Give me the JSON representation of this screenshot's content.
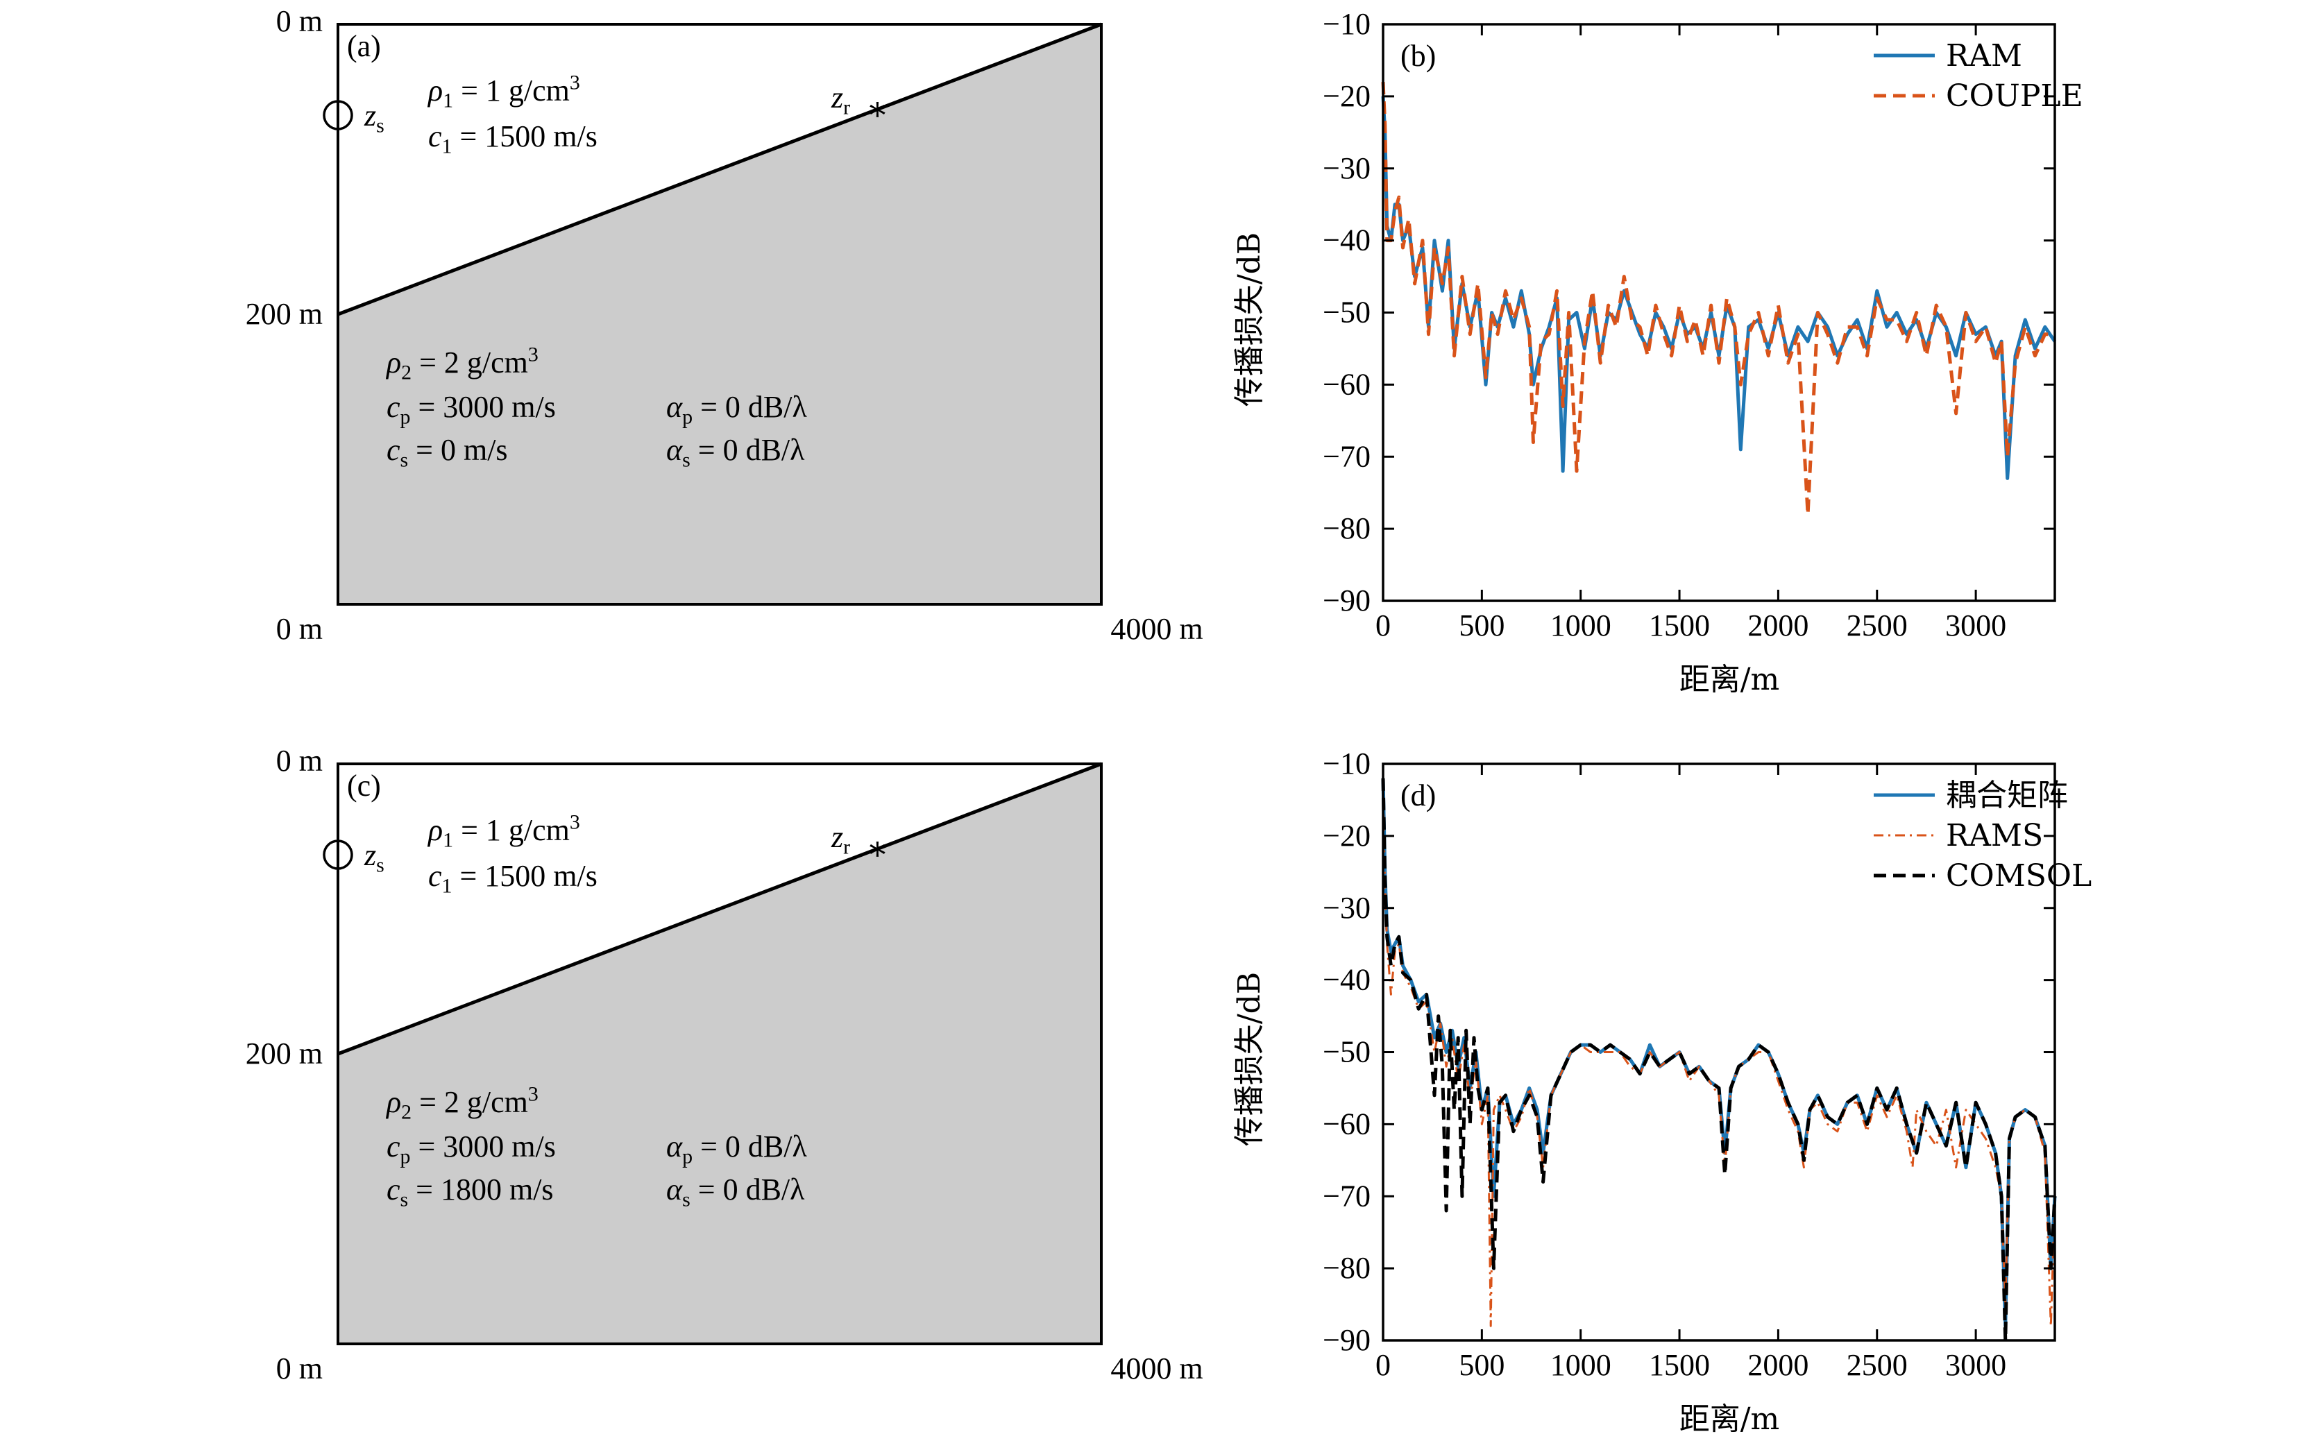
{
  "panels": {
    "a": {
      "label": "(a)",
      "y_top_label": "0 m",
      "y_mid_label": "200 m",
      "x_left_label": "0 m",
      "x_right_label": "4000 m",
      "source_label": "z",
      "source_sub": "s",
      "receiver_label": "z",
      "receiver_sub": "r",
      "water": {
        "rho": "ρ",
        "rho_sub": "1",
        "rho_val": " = 1 g/cm",
        "rho_sup": "3",
        "c": "c",
        "c_sub": "1",
        "c_val": " = 1500 m/s"
      },
      "seabed": {
        "rho": "ρ",
        "rho_sub": "2",
        "rho_val": " = 2 g/cm",
        "rho_sup": "3",
        "cp": "c",
        "cp_sub": "p",
        "cp_val": " = 3000 m/s",
        "ap": "α",
        "ap_sub": "p",
        "ap_val": " = 0 dB/λ",
        "cs": "c",
        "cs_sub": "s",
        "cs_val": " = 0 m/s",
        "as": "α",
        "as_sub": "s",
        "as_val": " = 0 dB/λ"
      }
    },
    "c": {
      "label": "(c)",
      "y_top_label": "0 m",
      "y_mid_label": "200 m",
      "x_left_label": "0 m",
      "x_right_label": "4000 m",
      "source_label": "z",
      "source_sub": "s",
      "receiver_label": "z",
      "receiver_sub": "r",
      "water": {
        "rho": "ρ",
        "rho_sub": "1",
        "rho_val": " = 1 g/cm",
        "rho_sup": "3",
        "c": "c",
        "c_sub": "1",
        "c_val": " = 1500 m/s"
      },
      "seabed": {
        "rho": "ρ",
        "rho_sub": "2",
        "rho_val": " = 2 g/cm",
        "rho_sup": "3",
        "cp": "c",
        "cp_sub": "p",
        "cp_val": " = 3000 m/s",
        "ap": "α",
        "ap_sub": "p",
        "ap_val": " = 0 dB/λ",
        "cs": "c",
        "cs_sub": "s",
        "cs_val": " = 1800 m/s",
        "as": "α",
        "as_sub": "s",
        "as_val": " = 0 dB/λ"
      }
    }
  },
  "colors": {
    "blue": "#1f77b4",
    "orange": "#d95319",
    "black": "#000000",
    "seabed": "#cccccc"
  },
  "chart_data": [
    {
      "panel": "(b)",
      "type": "line",
      "xlabel": "距离/m",
      "ylabel": "传播损失/dB",
      "xlim": [
        0,
        3400
      ],
      "ylim": [
        -90,
        -10
      ],
      "xticks": [
        0,
        500,
        1000,
        1500,
        2000,
        2500,
        3000
      ],
      "yticks": [
        -10,
        -20,
        -30,
        -40,
        -50,
        -60,
        -70,
        -80,
        -90
      ],
      "ytick_labels": [
        "−10",
        "−20",
        "−30",
        "−40",
        "−50",
        "−60",
        "−70",
        "−80",
        "−90"
      ],
      "legend_position": "top-right",
      "series": [
        {
          "name": "RAM",
          "style": "solid",
          "color": "#1f77b4",
          "x": [
            0,
            10,
            20,
            40,
            60,
            80,
            100,
            130,
            160,
            200,
            230,
            260,
            300,
            330,
            360,
            400,
            440,
            480,
            520,
            550,
            580,
            620,
            660,
            700,
            740,
            760,
            800,
            840,
            880,
            910,
            940,
            980,
            1020,
            1060,
            1100,
            1140,
            1180,
            1220,
            1260,
            1300,
            1340,
            1380,
            1420,
            1460,
            1500,
            1540,
            1580,
            1620,
            1660,
            1700,
            1740,
            1780,
            1810,
            1850,
            1900,
            1950,
            2000,
            2050,
            2100,
            2150,
            2200,
            2250,
            2300,
            2350,
            2400,
            2450,
            2500,
            2550,
            2600,
            2650,
            2700,
            2750,
            2800,
            2850,
            2900,
            2950,
            3000,
            3050,
            3100,
            3130,
            3160,
            3200,
            3250,
            3300,
            3350,
            3400
          ],
          "y": [
            -20,
            -25,
            -38,
            -40,
            -35,
            -35,
            -40,
            -38,
            -45,
            -41,
            -52,
            -40,
            -47,
            -40,
            -55,
            -46,
            -52,
            -47,
            -60,
            -50,
            -52,
            -48,
            -52,
            -47,
            -53,
            -60,
            -55,
            -52,
            -48,
            -72,
            -51,
            -50,
            -55,
            -48,
            -56,
            -50,
            -51,
            -47,
            -50,
            -53,
            -55,
            -50,
            -52,
            -55,
            -50,
            -53,
            -52,
            -55,
            -50,
            -56,
            -49,
            -52,
            -69,
            -52,
            -51,
            -55,
            -50,
            -56,
            -52,
            -54,
            -50,
            -52,
            -56,
            -53,
            -51,
            -55,
            -47,
            -52,
            -50,
            -53,
            -51,
            -55,
            -50,
            -52,
            -56,
            -50,
            -53,
            -52,
            -56,
            -54,
            -73,
            -56,
            -51,
            -55,
            -52,
            -54
          ]
        },
        {
          "name": "COUPLE",
          "style": "dashed",
          "color": "#d95319",
          "x": [
            0,
            10,
            20,
            40,
            60,
            80,
            100,
            130,
            160,
            200,
            230,
            260,
            300,
            330,
            360,
            400,
            440,
            480,
            520,
            550,
            580,
            620,
            660,
            700,
            740,
            760,
            800,
            840,
            880,
            910,
            940,
            980,
            1020,
            1060,
            1100,
            1140,
            1180,
            1220,
            1260,
            1300,
            1340,
            1380,
            1420,
            1460,
            1500,
            1540,
            1580,
            1620,
            1660,
            1700,
            1740,
            1780,
            1810,
            1850,
            1900,
            1950,
            2000,
            2050,
            2100,
            2150,
            2200,
            2250,
            2300,
            2350,
            2400,
            2450,
            2500,
            2550,
            2600,
            2650,
            2700,
            2750,
            2800,
            2850,
            2900,
            2950,
            3000,
            3050,
            3100,
            3130,
            3160,
            3200,
            3250,
            3300,
            3350,
            3400
          ],
          "y": [
            -18,
            -24,
            -40,
            -40,
            -36,
            -34,
            -41,
            -37,
            -46,
            -40,
            -53,
            -41,
            -46,
            -41,
            -56,
            -45,
            -53,
            -46,
            -59,
            -50,
            -53,
            -47,
            -51,
            -48,
            -52,
            -68,
            -54,
            -53,
            -47,
            -63,
            -50,
            -72,
            -54,
            -47,
            -57,
            -49,
            -52,
            -45,
            -51,
            -52,
            -56,
            -49,
            -53,
            -56,
            -49,
            -54,
            -51,
            -56,
            -49,
            -57,
            -48,
            -52,
            -60,
            -53,
            -50,
            -56,
            -49,
            -57,
            -53,
            -78,
            -50,
            -53,
            -57,
            -52,
            -52,
            -56,
            -48,
            -51,
            -51,
            -54,
            -50,
            -56,
            -49,
            -52,
            -64,
            -50,
            -54,
            -52,
            -57,
            -54,
            -70,
            -57,
            -52,
            -56,
            -53,
            -53
          ]
        }
      ]
    },
    {
      "panel": "(d)",
      "type": "line",
      "xlabel": "距离/m",
      "ylabel": "传播损失/dB",
      "xlim": [
        0,
        3400
      ],
      "ylim": [
        -90,
        -10
      ],
      "xticks": [
        0,
        500,
        1000,
        1500,
        2000,
        2500,
        3000
      ],
      "yticks": [
        -10,
        -20,
        -30,
        -40,
        -50,
        -60,
        -70,
        -80,
        -90
      ],
      "ytick_labels": [
        "−10",
        "−20",
        "−30",
        "−40",
        "−50",
        "−60",
        "−70",
        "−80",
        "−90"
      ],
      "legend_position": "top-right",
      "series": [
        {
          "name": "耦合矩阵",
          "style": "solid",
          "color": "#1f77b4",
          "x": [
            0,
            10,
            20,
            40,
            60,
            80,
            100,
            140,
            180,
            220,
            260,
            290,
            320,
            350,
            380,
            410,
            440,
            470,
            500,
            530,
            560,
            590,
            620,
            660,
            700,
            740,
            780,
            810,
            850,
            900,
            950,
            1000,
            1050,
            1100,
            1150,
            1200,
            1250,
            1300,
            1350,
            1400,
            1450,
            1500,
            1550,
            1600,
            1650,
            1700,
            1730,
            1760,
            1800,
            1850,
            1900,
            1950,
            2000,
            2050,
            2100,
            2130,
            2160,
            2200,
            2250,
            2300,
            2350,
            2400,
            2450,
            2500,
            2550,
            2600,
            2650,
            2700,
            2750,
            2800,
            2850,
            2900,
            2950,
            3000,
            3050,
            3100,
            3130,
            3150,
            3170,
            3200,
            3250,
            3300,
            3350,
            3380,
            3400
          ],
          "y": [
            -12,
            -25,
            -33,
            -36,
            -35,
            -34,
            -38,
            -40,
            -43,
            -42,
            -48,
            -46,
            -50,
            -47,
            -52,
            -48,
            -55,
            -50,
            -58,
            -55,
            -70,
            -57,
            -56,
            -60,
            -58,
            -55,
            -58,
            -64,
            -56,
            -53,
            -50,
            -49,
            -49,
            -50,
            -49,
            -50,
            -51,
            -53,
            -49,
            -52,
            -51,
            -50,
            -53,
            -52,
            -54,
            -55,
            -64,
            -55,
            -52,
            -51,
            -49,
            -50,
            -53,
            -57,
            -60,
            -64,
            -58,
            -56,
            -59,
            -60,
            -57,
            -56,
            -60,
            -55,
            -58,
            -55,
            -60,
            -64,
            -57,
            -60,
            -63,
            -57,
            -66,
            -57,
            -60,
            -64,
            -70,
            -88,
            -62,
            -59,
            -58,
            -59,
            -63,
            -80,
            -70
          ]
        },
        {
          "name": "RAMS",
          "style": "dashdot",
          "color": "#d95319",
          "x": [
            0,
            10,
            20,
            40,
            60,
            80,
            100,
            140,
            180,
            220,
            260,
            290,
            320,
            350,
            380,
            410,
            440,
            470,
            500,
            530,
            545,
            560,
            590,
            620,
            660,
            700,
            740,
            780,
            810,
            850,
            900,
            950,
            1000,
            1050,
            1100,
            1150,
            1200,
            1250,
            1300,
            1350,
            1400,
            1450,
            1500,
            1550,
            1600,
            1650,
            1700,
            1730,
            1760,
            1800,
            1850,
            1900,
            1950,
            2000,
            2050,
            2100,
            2130,
            2160,
            2200,
            2250,
            2300,
            2350,
            2400,
            2450,
            2500,
            2550,
            2600,
            2650,
            2680,
            2700,
            2750,
            2800,
            2850,
            2900,
            2950,
            3000,
            3050,
            3100,
            3130,
            3150,
            3170,
            3200,
            3250,
            3300,
            3350,
            3380,
            3400
          ],
          "y": [
            -14,
            -27,
            -35,
            -42,
            -36,
            -35,
            -39,
            -41,
            -44,
            -43,
            -50,
            -46,
            -52,
            -48,
            -54,
            -49,
            -57,
            -51,
            -60,
            -56,
            -88,
            -58,
            -56,
            -58,
            -61,
            -59,
            -55,
            -59,
            -66,
            -56,
            -53,
            -50,
            -49,
            -50,
            -50,
            -50,
            -50,
            -52,
            -53,
            -50,
            -52,
            -51,
            -50,
            -54,
            -52,
            -54,
            -56,
            -66,
            -55,
            -52,
            -51,
            -50,
            -50,
            -54,
            -58,
            -61,
            -66,
            -58,
            -57,
            -60,
            -61,
            -57,
            -57,
            -61,
            -56,
            -59,
            -56,
            -61,
            -66,
            -58,
            -61,
            -63,
            -58,
            -66,
            -58,
            -60,
            -62,
            -66,
            -70,
            -85,
            -62,
            -59,
            -58,
            -59,
            -64,
            -88,
            -70
          ]
        },
        {
          "name": "COMSOL",
          "style": "dashed",
          "color": "#000000",
          "x": [
            0,
            10,
            20,
            40,
            60,
            80,
            100,
            140,
            180,
            220,
            260,
            280,
            300,
            320,
            340,
            360,
            380,
            400,
            420,
            440,
            460,
            480,
            500,
            530,
            560,
            590,
            620,
            660,
            700,
            740,
            780,
            810,
            850,
            900,
            950,
            1000,
            1050,
            1100,
            1150,
            1200,
            1250,
            1300,
            1350,
            1400,
            1450,
            1500,
            1550,
            1600,
            1650,
            1700,
            1730,
            1760,
            1800,
            1850,
            1900,
            1950,
            2000,
            2050,
            2100,
            2130,
            2160,
            2200,
            2250,
            2300,
            2350,
            2400,
            2450,
            2500,
            2550,
            2600,
            2650,
            2700,
            2750,
            2800,
            2850,
            2900,
            2950,
            3000,
            3050,
            3100,
            3130,
            3150,
            3170,
            3200,
            3250,
            3300,
            3350,
            3380,
            3400
          ],
          "y": [
            -12,
            -26,
            -34,
            -38,
            -35,
            -34,
            -39,
            -40,
            -44,
            -42,
            -56,
            -45,
            -52,
            -72,
            -47,
            -58,
            -48,
            -70,
            -47,
            -60,
            -48,
            -55,
            -58,
            -55,
            -80,
            -57,
            -56,
            -61,
            -58,
            -56,
            -59,
            -68,
            -56,
            -53,
            -50,
            -49,
            -49,
            -50,
            -49,
            -50,
            -51,
            -53,
            -50,
            -52,
            -51,
            -50,
            -53,
            -52,
            -54,
            -55,
            -67,
            -55,
            -52,
            -51,
            -49,
            -50,
            -53,
            -57,
            -60,
            -65,
            -58,
            -56,
            -59,
            -60,
            -57,
            -56,
            -60,
            -55,
            -58,
            -55,
            -60,
            -64,
            -57,
            -60,
            -63,
            -57,
            -66,
            -57,
            -60,
            -64,
            -70,
            -90,
            -62,
            -59,
            -58,
            -59,
            -63,
            -80,
            -70
          ]
        }
      ]
    }
  ]
}
